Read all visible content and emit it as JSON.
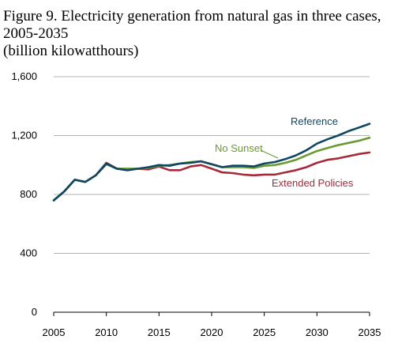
{
  "figure": {
    "title_line1": "Figure 9. Electricity generation from natural gas in three cases,",
    "title_line2": "2005-2035",
    "title_line3": "(billion kilowatthours)"
  },
  "chart_data": {
    "type": "line",
    "title": "Figure 9. Electricity generation from natural gas in three cases, 2005-2035",
    "subtitle": "(billion kilowatthours)",
    "xlabel": "",
    "ylabel": "",
    "xlim": [
      2005,
      2035
    ],
    "ylim": [
      0,
      1600
    ],
    "x_ticks": [
      2005,
      2010,
      2015,
      2020,
      2025,
      2030,
      2035
    ],
    "x_tick_labels": [
      "2005",
      "2010",
      "2015",
      "2020",
      "2025",
      "2030",
      "2035"
    ],
    "y_ticks": [
      0,
      400,
      800,
      1200,
      1600
    ],
    "y_tick_labels": [
      "0",
      "400",
      "800",
      "1,200",
      "1,600"
    ],
    "grid": true,
    "legend": "direct labels on lines",
    "x": [
      2005,
      2006,
      2007,
      2008,
      2009,
      2010,
      2011,
      2012,
      2013,
      2014,
      2015,
      2016,
      2017,
      2018,
      2019,
      2020,
      2021,
      2022,
      2023,
      2024,
      2025,
      2026,
      2027,
      2028,
      2029,
      2030,
      2031,
      2032,
      2033,
      2034,
      2035
    ],
    "series": [
      {
        "name": "Reference",
        "color": "#0d4763",
        "values": [
          760,
          820,
          900,
          885,
          930,
          1010,
          975,
          965,
          975,
          985,
          1000,
          995,
          1010,
          1015,
          1025,
          1005,
          985,
          995,
          995,
          990,
          1010,
          1020,
          1040,
          1065,
          1100,
          1145,
          1175,
          1200,
          1230,
          1255,
          1280
        ]
      },
      {
        "name": "No Sunset",
        "color": "#6b9a32",
        "values": [
          760,
          820,
          900,
          885,
          930,
          1005,
          975,
          975,
          975,
          980,
          995,
          1000,
          1010,
          1020,
          1025,
          1005,
          985,
          985,
          985,
          980,
          995,
          1000,
          1015,
          1035,
          1065,
          1095,
          1115,
          1135,
          1150,
          1165,
          1185
        ]
      },
      {
        "name": "Extended Policies",
        "color": "#a52a3a",
        "values": [
          760,
          820,
          900,
          885,
          930,
          1015,
          975,
          965,
          975,
          970,
          990,
          965,
          965,
          990,
          1000,
          975,
          950,
          945,
          935,
          930,
          935,
          935,
          950,
          965,
          985,
          1015,
          1035,
          1045,
          1060,
          1075,
          1085
        ]
      }
    ],
    "label_color": {
      "Reference": "#0d4763",
      "No Sunset": "#6b9a32",
      "Extended Policies": "#a52a3a"
    }
  }
}
